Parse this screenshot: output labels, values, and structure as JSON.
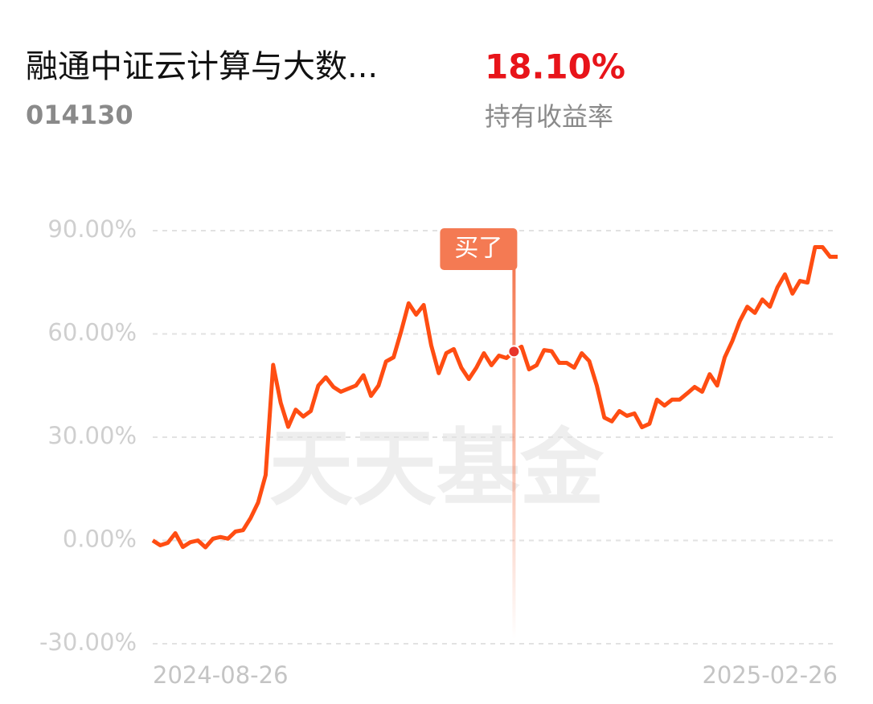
{
  "header": {
    "title": "融通中证云计算与大数...",
    "code": "014130",
    "return_value": "18.10%",
    "return_label": "持有收益率"
  },
  "chart_data": {
    "type": "line",
    "watermark": "天天基金",
    "categories": [
      "2024-08-26",
      null,
      null,
      null,
      null,
      null,
      null,
      null,
      null,
      null,
      null,
      null,
      null,
      null,
      null,
      null,
      null,
      null,
      null,
      null,
      null,
      null,
      null,
      null,
      null,
      null,
      null,
      null,
      null,
      null,
      null,
      null,
      null,
      null,
      null,
      null,
      null,
      null,
      null,
      null,
      null,
      null,
      null,
      null,
      null,
      null,
      null,
      null,
      null,
      null,
      null,
      null,
      null,
      null,
      null,
      null,
      null,
      null,
      null,
      null,
      null,
      null,
      null,
      null,
      null,
      null,
      null,
      null,
      null,
      null,
      null,
      null,
      null,
      null,
      null,
      null,
      null,
      null,
      null,
      null,
      null,
      null,
      null,
      null,
      null,
      null,
      null,
      null,
      null,
      null,
      null,
      "2025-02-26"
    ],
    "series": [
      {
        "color": "#ff4d12",
        "values": [
          0,
          -1.4,
          -0.7,
          2.1,
          -1.9,
          -0.5,
          0,
          -2,
          0.5,
          1,
          0.5,
          2.6,
          3,
          6.5,
          11,
          19,
          51,
          40,
          33,
          38,
          36,
          37.6,
          45,
          47.4,
          44.6,
          43.2,
          44.1,
          45,
          48,
          42,
          45,
          52,
          53.2,
          60.7,
          68.9,
          65.6,
          68.4,
          56.7,
          48.6,
          54.4,
          55.6,
          50.2,
          46.9,
          50.2,
          54.4,
          50.9,
          53.7,
          53,
          54.9,
          56.3,
          49.7,
          50.9,
          55.3,
          55,
          51.6,
          51.6,
          50.2,
          54.4,
          52.1,
          45,
          35.7,
          34.6,
          37.6,
          36.2,
          36.9,
          32.9,
          33.9,
          40.9,
          39.2,
          40.9,
          40.9,
          42.7,
          44.6,
          43.2,
          48.3,
          45,
          53.2,
          57.9,
          63.7,
          67.9,
          66.1,
          70,
          67.9,
          73.5,
          77.3,
          71.7,
          75.4,
          74.9,
          85.2,
          85.2,
          82.4,
          82.4
        ]
      }
    ],
    "ylim": [
      -30,
      90
    ],
    "yticks": [
      {
        "value": -30,
        "label": "-30.00%"
      },
      {
        "value": 0,
        "label": "0.00%"
      },
      {
        "value": 30,
        "label": "30.00%"
      },
      {
        "value": 60,
        "label": "60.00%"
      },
      {
        "value": 90,
        "label": "90.00%"
      }
    ],
    "grid": true,
    "annotations": [
      {
        "text": "买了",
        "index": 48
      }
    ]
  }
}
